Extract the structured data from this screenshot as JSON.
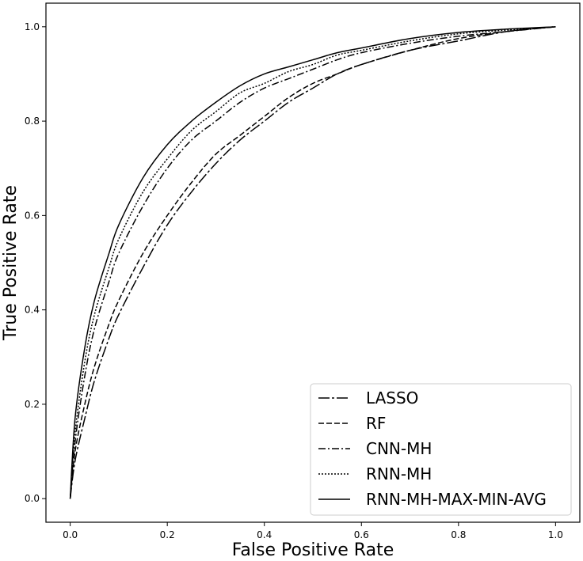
{
  "chart_data": {
    "type": "line",
    "title": "",
    "xlabel": "False Positive Rate",
    "ylabel": "True Positive Rate",
    "xlim": [
      -0.05,
      1.05
    ],
    "ylim": [
      -0.05,
      1.05
    ],
    "xticks": [
      "0.0",
      "0.2",
      "0.4",
      "0.6",
      "0.8",
      "1.0"
    ],
    "yticks": [
      "0.0",
      "0.2",
      "0.4",
      "0.6",
      "0.8",
      "1.0"
    ],
    "grid": false,
    "legend_position": "lower-right",
    "series": [
      {
        "name": "LASSO",
        "dash": "long-dash",
        "points": [
          [
            0,
            0
          ],
          [
            0.01,
            0.08
          ],
          [
            0.03,
            0.17
          ],
          [
            0.05,
            0.25
          ],
          [
            0.08,
            0.34
          ],
          [
            0.1,
            0.39
          ],
          [
            0.15,
            0.49
          ],
          [
            0.2,
            0.58
          ],
          [
            0.25,
            0.65
          ],
          [
            0.3,
            0.71
          ],
          [
            0.35,
            0.76
          ],
          [
            0.4,
            0.8
          ],
          [
            0.45,
            0.84
          ],
          [
            0.5,
            0.87
          ],
          [
            0.55,
            0.9
          ],
          [
            0.6,
            0.92
          ],
          [
            0.7,
            0.95
          ],
          [
            0.8,
            0.97
          ],
          [
            0.9,
            0.99
          ],
          [
            1.0,
            1.0
          ]
        ]
      },
      {
        "name": "RF",
        "dash": "dashed",
        "points": [
          [
            0,
            0
          ],
          [
            0.01,
            0.1
          ],
          [
            0.03,
            0.2
          ],
          [
            0.05,
            0.28
          ],
          [
            0.08,
            0.37
          ],
          [
            0.1,
            0.42
          ],
          [
            0.15,
            0.52
          ],
          [
            0.2,
            0.6
          ],
          [
            0.25,
            0.67
          ],
          [
            0.3,
            0.73
          ],
          [
            0.35,
            0.77
          ],
          [
            0.4,
            0.81
          ],
          [
            0.45,
            0.85
          ],
          [
            0.5,
            0.88
          ],
          [
            0.55,
            0.9
          ],
          [
            0.6,
            0.92
          ],
          [
            0.7,
            0.95
          ],
          [
            0.8,
            0.975
          ],
          [
            0.9,
            0.99
          ],
          [
            1.0,
            1.0
          ]
        ]
      },
      {
        "name": "CNN-MH",
        "dash": "dash-dot",
        "points": [
          [
            0,
            0
          ],
          [
            0.01,
            0.12
          ],
          [
            0.03,
            0.26
          ],
          [
            0.05,
            0.36
          ],
          [
            0.08,
            0.46
          ],
          [
            0.1,
            0.52
          ],
          [
            0.15,
            0.62
          ],
          [
            0.2,
            0.7
          ],
          [
            0.25,
            0.76
          ],
          [
            0.3,
            0.8
          ],
          [
            0.35,
            0.84
          ],
          [
            0.4,
            0.87
          ],
          [
            0.45,
            0.89
          ],
          [
            0.5,
            0.91
          ],
          [
            0.55,
            0.93
          ],
          [
            0.6,
            0.945
          ],
          [
            0.7,
            0.965
          ],
          [
            0.8,
            0.98
          ],
          [
            0.9,
            0.99
          ],
          [
            1.0,
            1.0
          ]
        ]
      },
      {
        "name": "RNN-MH",
        "dash": "dotted",
        "points": [
          [
            0,
            0
          ],
          [
            0.01,
            0.14
          ],
          [
            0.03,
            0.29
          ],
          [
            0.05,
            0.39
          ],
          [
            0.08,
            0.49
          ],
          [
            0.1,
            0.55
          ],
          [
            0.15,
            0.65
          ],
          [
            0.2,
            0.72
          ],
          [
            0.25,
            0.78
          ],
          [
            0.3,
            0.82
          ],
          [
            0.35,
            0.86
          ],
          [
            0.4,
            0.88
          ],
          [
            0.45,
            0.905
          ],
          [
            0.5,
            0.92
          ],
          [
            0.55,
            0.94
          ],
          [
            0.6,
            0.95
          ],
          [
            0.7,
            0.97
          ],
          [
            0.8,
            0.985
          ],
          [
            0.9,
            0.993
          ],
          [
            1.0,
            1.0
          ]
        ]
      },
      {
        "name": "RNN-MH-MAX-MIN-AVG",
        "dash": "solid",
        "points": [
          [
            0,
            0
          ],
          [
            0.01,
            0.17
          ],
          [
            0.03,
            0.32
          ],
          [
            0.05,
            0.42
          ],
          [
            0.08,
            0.52
          ],
          [
            0.1,
            0.58
          ],
          [
            0.15,
            0.68
          ],
          [
            0.2,
            0.75
          ],
          [
            0.25,
            0.8
          ],
          [
            0.3,
            0.84
          ],
          [
            0.35,
            0.875
          ],
          [
            0.4,
            0.9
          ],
          [
            0.45,
            0.915
          ],
          [
            0.5,
            0.93
          ],
          [
            0.55,
            0.945
          ],
          [
            0.6,
            0.955
          ],
          [
            0.7,
            0.975
          ],
          [
            0.8,
            0.988
          ],
          [
            0.9,
            0.995
          ],
          [
            1.0,
            1.0
          ]
        ]
      }
    ]
  }
}
